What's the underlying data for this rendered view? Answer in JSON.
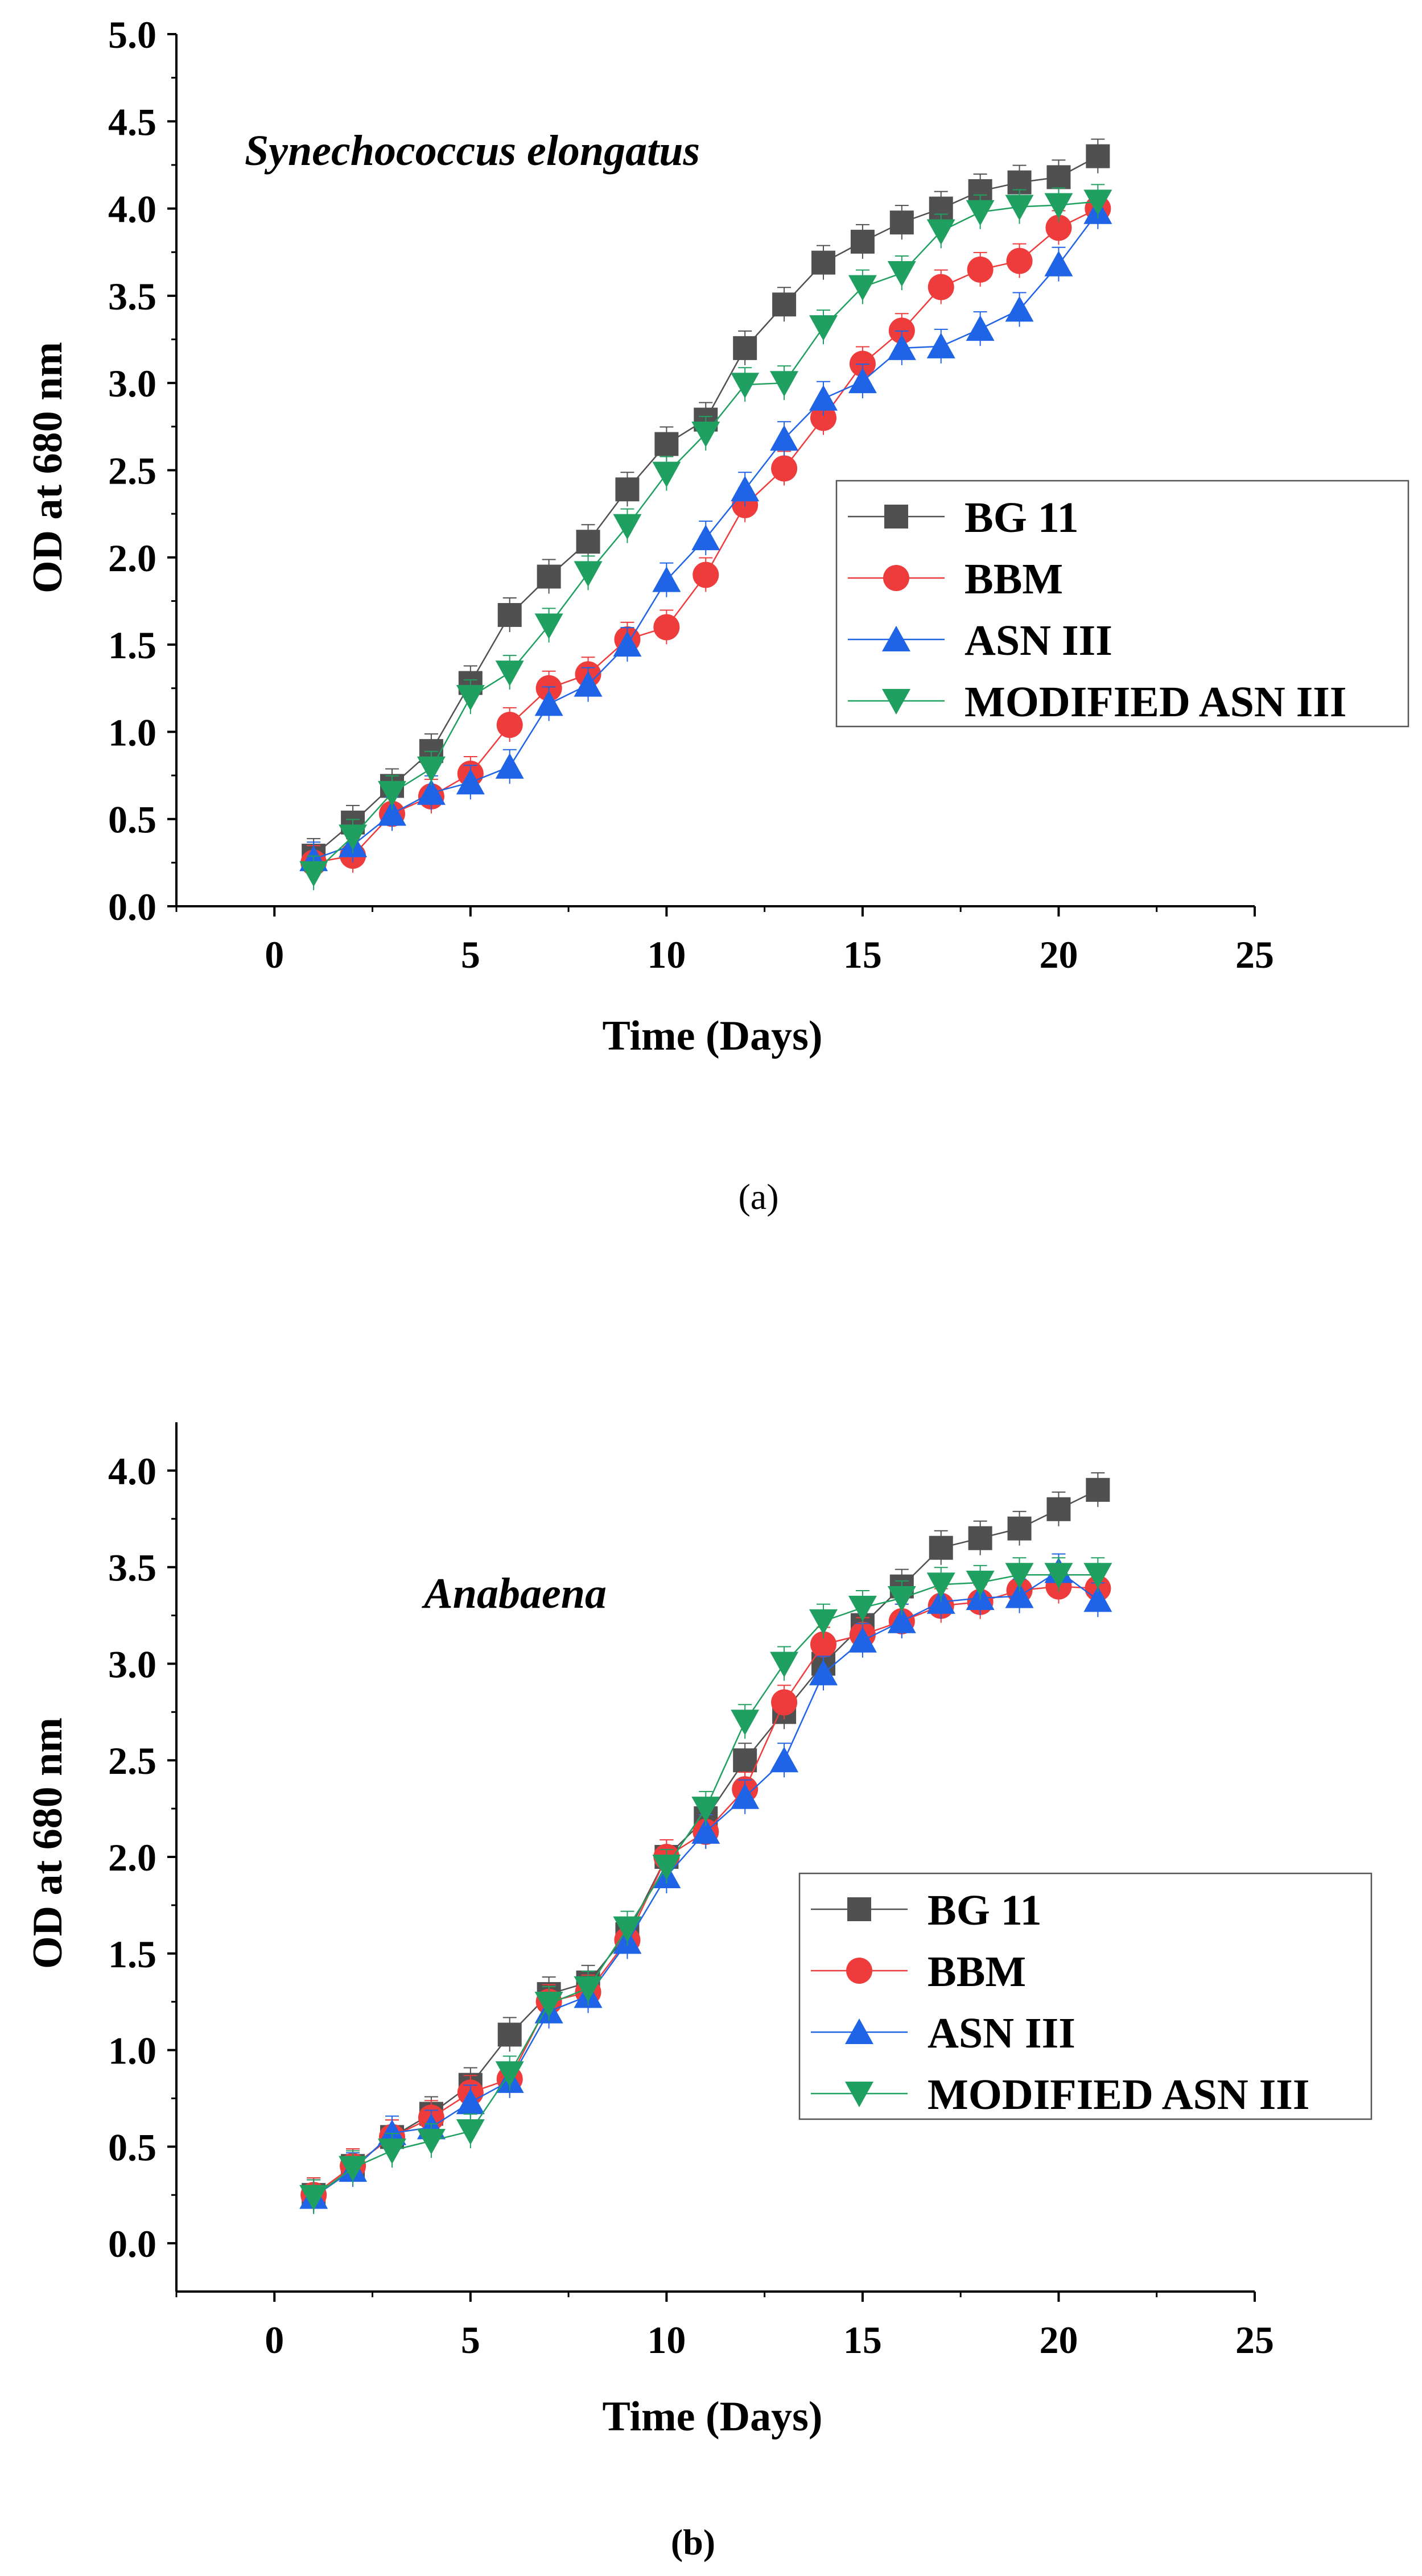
{
  "chart_data": [
    {
      "type": "line",
      "caption": "(a)",
      "annotation": "Synechococcus elongatus",
      "xlabel": "Time (Days)",
      "ylabel": "OD at 680 nm",
      "xlim": [
        -2.5,
        25
      ],
      "ylim": [
        0,
        5
      ],
      "xticks": [
        0,
        5,
        10,
        15,
        20,
        25
      ],
      "xtick_labels": [
        "0",
        "5",
        "10",
        "15",
        "20",
        "25"
      ],
      "yticks": [
        0,
        0.5,
        1,
        1.5,
        2,
        2.5,
        3,
        3.5,
        4,
        4.5,
        5
      ],
      "ytick_labels": [
        "0.0",
        "0.5",
        "1.0",
        "1.5",
        "2.0",
        "2.5",
        "3.0",
        "3.5",
        "4.0",
        "4.5",
        "5.0"
      ],
      "legend_position": "center-right",
      "grid": false,
      "x": [
        1,
        2,
        3,
        4,
        5,
        6,
        7,
        8,
        9,
        10,
        11,
        12,
        13,
        14,
        15,
        16,
        17,
        18,
        19,
        20,
        21
      ],
      "series": [
        {
          "name": "BG 11",
          "marker": "square",
          "color": "#505050",
          "values": [
            0.29,
            0.48,
            0.69,
            0.89,
            1.28,
            1.67,
            1.89,
            2.09,
            2.39,
            2.65,
            2.79,
            3.2,
            3.45,
            3.69,
            3.81,
            3.92,
            4.0,
            4.1,
            4.15,
            4.18,
            4.3
          ]
        },
        {
          "name": "BBM",
          "marker": "circle",
          "color": "#ee3b3b",
          "values": [
            0.25,
            0.29,
            0.53,
            0.63,
            0.76,
            1.04,
            1.25,
            1.33,
            1.53,
            1.6,
            1.9,
            2.3,
            2.51,
            2.8,
            3.11,
            3.3,
            3.55,
            3.65,
            3.7,
            3.89,
            4.0
          ]
        },
        {
          "name": "ASN III",
          "marker": "triangle-up",
          "color": "#1f64e6",
          "values": [
            0.27,
            0.35,
            0.53,
            0.65,
            0.71,
            0.8,
            1.16,
            1.27,
            1.5,
            1.87,
            2.11,
            2.39,
            2.68,
            2.91,
            3.01,
            3.2,
            3.21,
            3.31,
            3.42,
            3.68,
            3.98
          ]
        },
        {
          "name": "MODIFIED ASN III",
          "marker": "triangle-down",
          "color": "#20a060",
          "values": [
            0.19,
            0.4,
            0.65,
            0.79,
            1.2,
            1.34,
            1.61,
            1.91,
            2.18,
            2.48,
            2.71,
            2.99,
            3.0,
            3.32,
            3.55,
            3.63,
            3.87,
            3.98,
            4.01,
            4.02,
            4.04
          ]
        }
      ]
    },
    {
      "type": "line",
      "caption": "(b)",
      "annotation": "Anabaena",
      "xlabel": "Time (Days)",
      "ylabel": "OD at 680 nm",
      "xlim": [
        -2.5,
        25
      ],
      "ylim": [
        -0.25,
        4.25
      ],
      "xticks": [
        0,
        5,
        10,
        15,
        20,
        25
      ],
      "xtick_labels": [
        "0",
        "5",
        "10",
        "15",
        "20",
        "25"
      ],
      "yticks": [
        0,
        0.5,
        1,
        1.5,
        2,
        2.5,
        3,
        3.5,
        4
      ],
      "ytick_labels": [
        "0.0",
        "0.5",
        "1.0",
        "1.5",
        "2.0",
        "2.5",
        "3.0",
        "3.5",
        "4.0"
      ],
      "legend_position": "lower-right",
      "grid": false,
      "x": [
        1,
        2,
        3,
        4,
        5,
        6,
        7,
        8,
        9,
        10,
        11,
        12,
        13,
        14,
        15,
        16,
        17,
        18,
        19,
        20,
        21
      ],
      "series": [
        {
          "name": "BG 11",
          "marker": "square",
          "color": "#505050",
          "values": [
            0.25,
            0.4,
            0.55,
            0.67,
            0.82,
            1.08,
            1.29,
            1.35,
            1.6,
            2.0,
            2.2,
            2.5,
            2.75,
            3.0,
            3.2,
            3.4,
            3.6,
            3.65,
            3.7,
            3.8,
            3.9
          ]
        },
        {
          "name": "BBM",
          "marker": "circle",
          "color": "#ee3b3b",
          "values": [
            0.25,
            0.4,
            0.55,
            0.65,
            0.78,
            0.85,
            1.25,
            1.3,
            1.57,
            2.0,
            2.13,
            2.35,
            2.8,
            3.1,
            3.15,
            3.22,
            3.3,
            3.32,
            3.38,
            3.4,
            3.39
          ]
        },
        {
          "name": "ASN III",
          "marker": "triangle-up",
          "color": "#1f64e6",
          "values": [
            0.24,
            0.38,
            0.57,
            0.6,
            0.73,
            0.84,
            1.2,
            1.28,
            1.56,
            1.9,
            2.13,
            2.31,
            2.5,
            2.95,
            3.12,
            3.22,
            3.32,
            3.34,
            3.35,
            3.48,
            3.33
          ]
        },
        {
          "name": "MODIFIED ASN III",
          "marker": "triangle-down",
          "color": "#20a060",
          "values": [
            0.24,
            0.39,
            0.48,
            0.53,
            0.58,
            0.88,
            1.24,
            1.32,
            1.63,
            1.95,
            2.25,
            2.7,
            3.0,
            3.22,
            3.29,
            3.34,
            3.41,
            3.42,
            3.46,
            3.46,
            3.46
          ]
        }
      ]
    }
  ]
}
